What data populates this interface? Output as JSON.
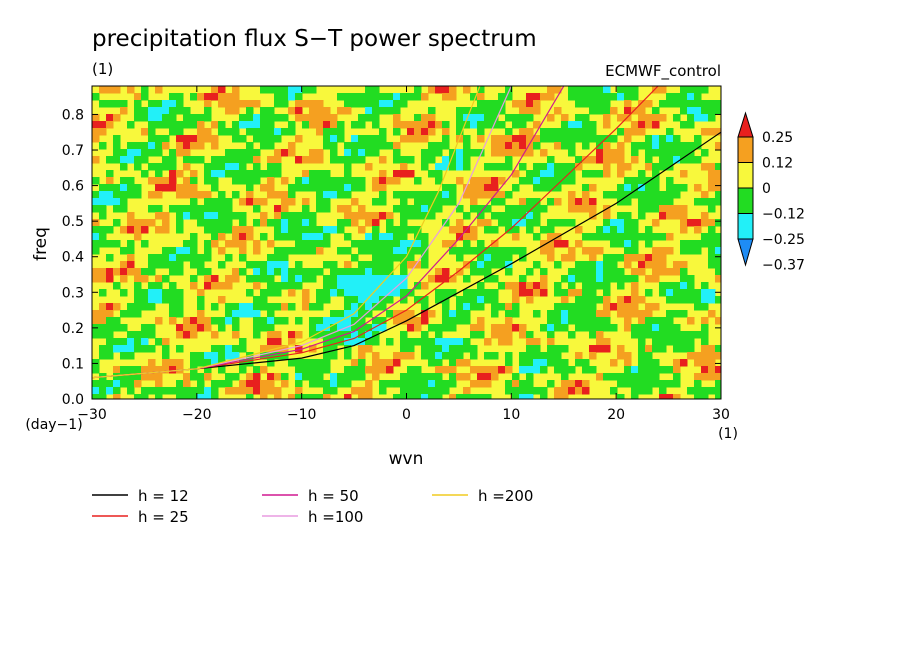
{
  "chart_data": {
    "type": "heatmap",
    "title": "precipitation flux S−T power spectrum",
    "subtitle": "(1)",
    "dataset_label": "ECMWF_control",
    "xlabel": "wvn",
    "ylabel": "freq",
    "x_unit_label": "(1)",
    "y_unit_label": "(day−1)",
    "xlim": [
      -30,
      30
    ],
    "ylim": [
      0,
      0.88
    ],
    "x_ticks": [
      -30,
      -20,
      -10,
      0,
      10,
      20,
      30
    ],
    "x_tick_labels": [
      "−30",
      "−20",
      "−10",
      "0",
      "10",
      "20",
      "30"
    ],
    "y_ticks": [
      0,
      0.1,
      0.2,
      0.3,
      0.4,
      0.5,
      0.6,
      0.7,
      0.8
    ],
    "y_tick_labels": [
      "0.0",
      "0.1",
      "0.2",
      "0.3",
      "0.4",
      "0.5",
      "0.6",
      "0.7",
      "0.8"
    ],
    "colorbar": {
      "levels": [
        0.25,
        0.12,
        0,
        -0.12,
        -0.25,
        -0.37
      ],
      "labels": [
        "0.25",
        "0.12",
        "0",
        "−0.12",
        "−0.25",
        "−0.37"
      ],
      "colors": [
        "#e8201e",
        "#f5a020",
        "#f8f83c",
        "#22dc22",
        "#22f0f8",
        "#1e8cf5"
      ]
    },
    "field_note": "noisy field dominated by yellow and green; cyan patches concentrated near wvn -10 to 0, freq 0.2-0.45",
    "series": [
      {
        "name": "h = 12",
        "color": "#000000",
        "x": [
          -30,
          -20,
          -10,
          -5,
          0,
          5,
          10,
          20,
          30
        ],
        "y": [
          0.06,
          0.085,
          0.115,
          0.15,
          0.22,
          0.3,
          0.38,
          0.55,
          0.75
        ]
      },
      {
        "name": "h = 25",
        "color": "#e8201e",
        "x": [
          -30,
          -20,
          -10,
          -5,
          0,
          5,
          10,
          15,
          20,
          24
        ],
        "y": [
          0.06,
          0.085,
          0.13,
          0.17,
          0.25,
          0.36,
          0.48,
          0.62,
          0.76,
          0.88
        ]
      },
      {
        "name": "h = 50",
        "color": "#d01890",
        "x": [
          -30,
          -20,
          -10,
          -5,
          0,
          5,
          10,
          15
        ],
        "y": [
          0.06,
          0.085,
          0.14,
          0.19,
          0.29,
          0.45,
          0.63,
          0.88
        ]
      },
      {
        "name": "h =100",
        "color": "#e89ce0",
        "x": [
          -30,
          -20,
          -10,
          -5,
          0,
          5,
          10
        ],
        "y": [
          0.06,
          0.085,
          0.15,
          0.21,
          0.34,
          0.55,
          0.88
        ]
      },
      {
        "name": "h =200",
        "color": "#f0cc20",
        "x": [
          -30,
          -20,
          -10,
          -5,
          0,
          3,
          7
        ],
        "y": [
          0.06,
          0.085,
          0.16,
          0.24,
          0.4,
          0.58,
          0.88
        ]
      }
    ]
  }
}
